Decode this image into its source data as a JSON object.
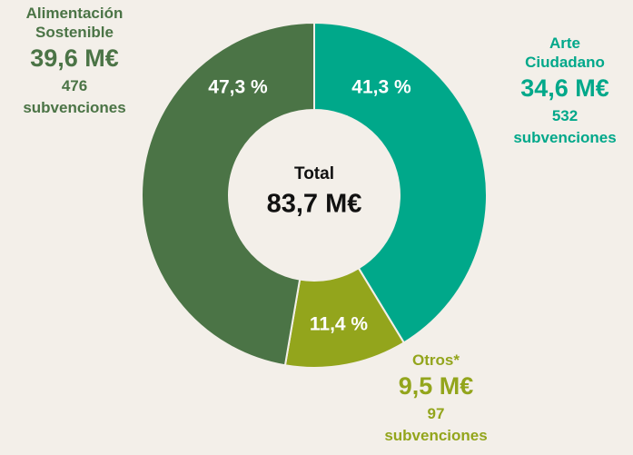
{
  "chart_data": {
    "type": "donut",
    "categories": [
      "Arte Ciudadano",
      "Otros*",
      "Alimentación Sostenible"
    ],
    "values": [
      41.3,
      11.4,
      47.3
    ],
    "value_labels": [
      "41,3 %",
      "11,4 %",
      "47,3 %"
    ],
    "colors": [
      "#00a88a",
      "#93a51c",
      "#4b7446"
    ],
    "amounts": [
      34.6,
      9.5,
      39.6
    ],
    "amount_labels": [
      "34,6 M€",
      "9,5 M€",
      "39,6 M€"
    ],
    "grants": [
      532,
      97,
      476
    ],
    "grants_unit": "subvenciones",
    "center_label": "Total",
    "center_value": "83,7 M€"
  }
}
